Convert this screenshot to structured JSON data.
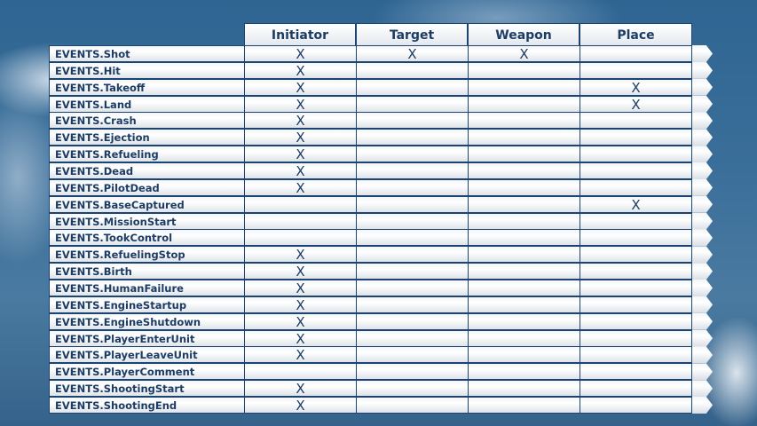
{
  "columns": [
    "Initiator",
    "Target",
    "Weapon",
    "Place"
  ],
  "mark_symbol": "X",
  "rows": [
    {
      "event": "EVENTS.Shot",
      "marks": [
        true,
        true,
        true,
        false
      ]
    },
    {
      "event": "EVENTS.Hit",
      "marks": [
        true,
        false,
        false,
        false
      ]
    },
    {
      "event": "EVENTS.Takeoff",
      "marks": [
        true,
        false,
        false,
        true
      ]
    },
    {
      "event": "EVENTS.Land",
      "marks": [
        true,
        false,
        false,
        true
      ]
    },
    {
      "event": "EVENTS.Crash",
      "marks": [
        true,
        false,
        false,
        false
      ]
    },
    {
      "event": "EVENTS.Ejection",
      "marks": [
        true,
        false,
        false,
        false
      ]
    },
    {
      "event": "EVENTS.Refueling",
      "marks": [
        true,
        false,
        false,
        false
      ]
    },
    {
      "event": "EVENTS.Dead",
      "marks": [
        true,
        false,
        false,
        false
      ]
    },
    {
      "event": "EVENTS.PilotDead",
      "marks": [
        true,
        false,
        false,
        false
      ]
    },
    {
      "event": "EVENTS.BaseCaptured",
      "marks": [
        false,
        false,
        false,
        true
      ]
    },
    {
      "event": "EVENTS.MissionStart",
      "marks": [
        false,
        false,
        false,
        false
      ]
    },
    {
      "event": "EVENTS.TookControl",
      "marks": [
        false,
        false,
        false,
        false
      ]
    },
    {
      "event": "EVENTS.RefuelingStop",
      "marks": [
        true,
        false,
        false,
        false
      ]
    },
    {
      "event": "EVENTS.Birth",
      "marks": [
        true,
        false,
        false,
        false
      ]
    },
    {
      "event": "EVENTS.HumanFailure",
      "marks": [
        true,
        false,
        false,
        false
      ]
    },
    {
      "event": "EVENTS.EngineStartup",
      "marks": [
        true,
        false,
        false,
        false
      ]
    },
    {
      "event": "EVENTS.EngineShutdown",
      "marks": [
        true,
        false,
        false,
        false
      ]
    },
    {
      "event": "EVENTS.PlayerEnterUnit",
      "marks": [
        true,
        false,
        false,
        false
      ]
    },
    {
      "event": "EVENTS.PlayerLeaveUnit",
      "marks": [
        true,
        false,
        false,
        false
      ]
    },
    {
      "event": "EVENTS.PlayerComment",
      "marks": [
        false,
        false,
        false,
        false
      ]
    },
    {
      "event": "EVENTS.ShootingStart",
      "marks": [
        true,
        false,
        false,
        false
      ]
    },
    {
      "event": "EVENTS.ShootingEnd",
      "marks": [
        true,
        false,
        false,
        false
      ]
    }
  ],
  "colors": {
    "text": "#1d3c64",
    "border": "#1b4470",
    "background": "#3b6f9a"
  }
}
